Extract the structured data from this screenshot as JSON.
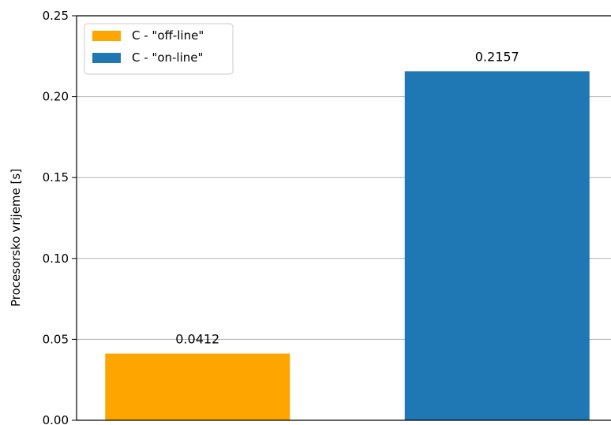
{
  "chart_data": {
    "type": "bar",
    "title": "",
    "xlabel": "",
    "ylabel": "Procesorsko vrijeme [s]",
    "ylim": [
      0,
      0.25
    ],
    "yticks": [
      "0.00",
      "0.05",
      "0.10",
      "0.15",
      "0.20",
      "0.25"
    ],
    "grid": "y",
    "legend_position": "top-left",
    "series": [
      {
        "name": "C - \"off-line\"",
        "value": 0.0412,
        "label": "0.0412",
        "color": "#FFA500"
      },
      {
        "name": "C - \"on-line\"",
        "value": 0.2157,
        "label": "0.2157",
        "color": "#1F77B4"
      }
    ]
  }
}
